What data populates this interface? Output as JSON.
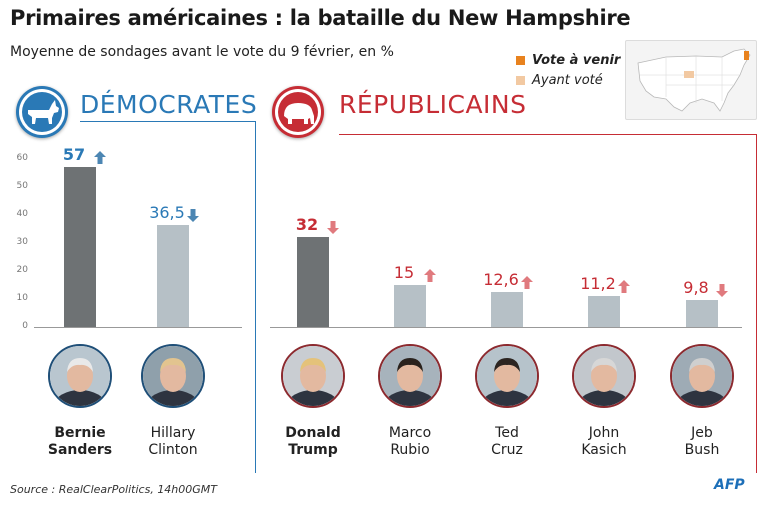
{
  "header": {
    "title": "Primaires américaines : la bataille du New Hampshire",
    "subtitle": "Moyenne de sondages avant le vote du 9 février, en %"
  },
  "legend": {
    "upcoming": "Vote à venir",
    "voted": "Ayant voté",
    "upcoming_color": "#e8821e",
    "voted_color": "#f2c9a2"
  },
  "colors": {
    "dem": "#2a79b6",
    "rep": "#c62d35",
    "bar_dark": "#6e7274",
    "bar_light": "#b6c0c6",
    "arrow_dem": "#4c86b3",
    "arrow_rep": "#e07a7e"
  },
  "chart_data": [
    {
      "type": "bar",
      "title": "DÉMOCRATES",
      "ylim": [
        0,
        60
      ],
      "yticks": [
        "0",
        "10",
        "20",
        "30",
        "40",
        "50",
        "60"
      ],
      "categories": [
        "Bernie Sanders",
        "Hillary Clinton"
      ],
      "name_lines": [
        [
          "Bernie",
          "Sanders"
        ],
        [
          "Hillary",
          "Clinton"
        ]
      ],
      "values": [
        57,
        36.5
      ],
      "labels": [
        "57",
        "36,5"
      ],
      "trend": [
        "up",
        "down"
      ],
      "leader": [
        true,
        false
      ]
    },
    {
      "type": "bar",
      "title": "RÉPUBLICAINS",
      "ylim": [
        0,
        60
      ],
      "categories": [
        "Donald Trump",
        "Marco Rubio",
        "Ted Cruz",
        "John Kasich",
        "Jeb Bush"
      ],
      "name_lines": [
        [
          "Donald",
          "Trump"
        ],
        [
          "Marco",
          "Rubio"
        ],
        [
          "Ted",
          "Cruz"
        ],
        [
          "John",
          "Kasich"
        ],
        [
          "Jeb",
          "Bush"
        ]
      ],
      "values": [
        32,
        15,
        12.6,
        11.2,
        9.8
      ],
      "labels": [
        "32",
        "15",
        "12,6",
        "11,2",
        "9,8"
      ],
      "trend": [
        "down",
        "up",
        "up",
        "up",
        "down"
      ],
      "leader": [
        true,
        false,
        false,
        false,
        false
      ]
    }
  ],
  "footer": {
    "source": "Source : RealClearPolitics, 14h00GMT",
    "credit": "AFP"
  }
}
